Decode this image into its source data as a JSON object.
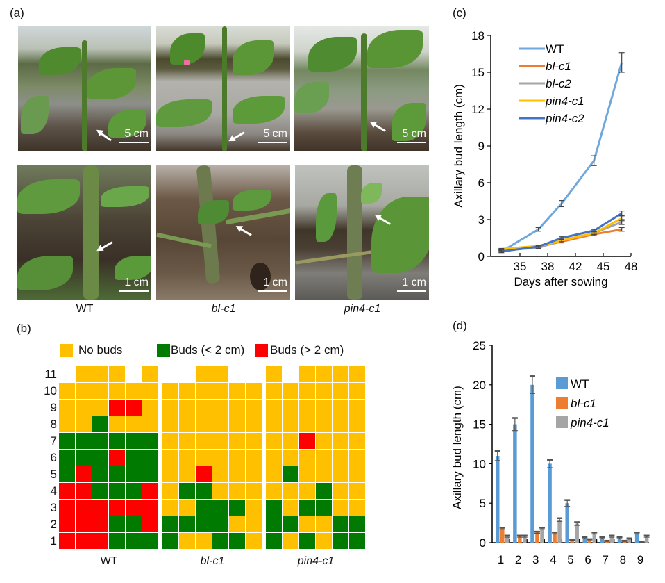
{
  "panels": {
    "a": {
      "label": "(a)",
      "photos_top": [
        {
          "genotype": "WT",
          "scale": "5 cm"
        },
        {
          "genotype": "bl-c1",
          "scale": "5 cm"
        },
        {
          "genotype": "pin4-c1",
          "scale": "5 cm"
        }
      ],
      "photos_bottom": [
        {
          "genotype": "WT",
          "scale": "1 cm"
        },
        {
          "genotype": "bl-c1",
          "scale": "1 cm"
        },
        {
          "genotype": "pin4-c1",
          "scale": "1 cm"
        }
      ],
      "captions": [
        "WT",
        "bl-c1",
        "pin4-c1"
      ]
    },
    "b": {
      "label": "(b)",
      "legend": [
        {
          "key": "Y",
          "label": "No buds",
          "color": "#FFC000"
        },
        {
          "key": "G",
          "label": "Buds (< 2 cm)",
          "color": "#007A00"
        },
        {
          "key": "R",
          "label": "Buds (> 2 cm)",
          "color": "#FF0000"
        }
      ],
      "row_labels": [
        "11",
        "10",
        "9",
        "8",
        "7",
        "6",
        "5",
        "4",
        "3",
        "2",
        "1"
      ],
      "groups": [
        {
          "name": "WT",
          "rows": [
            [
              "-",
              "Y",
              "Y",
              "Y",
              "-",
              "Y"
            ],
            [
              "Y",
              "Y",
              "Y",
              "Y",
              "Y",
              "Y"
            ],
            [
              "Y",
              "Y",
              "Y",
              "R",
              "R",
              "Y"
            ],
            [
              "Y",
              "Y",
              "G",
              "Y",
              "Y",
              "Y"
            ],
            [
              "G",
              "G",
              "G",
              "G",
              "G",
              "G"
            ],
            [
              "G",
              "G",
              "G",
              "R",
              "G",
              "G"
            ],
            [
              "G",
              "R",
              "G",
              "G",
              "G",
              "G"
            ],
            [
              "R",
              "R",
              "G",
              "G",
              "G",
              "R"
            ],
            [
              "R",
              "R",
              "R",
              "R",
              "R",
              "R"
            ],
            [
              "R",
              "R",
              "R",
              "G",
              "G",
              "R"
            ],
            [
              "R",
              "R",
              "R",
              "G",
              "G",
              "G"
            ]
          ]
        },
        {
          "name": "bl-c1",
          "rows": [
            [
              "-",
              "-",
              "Y",
              "Y",
              "-",
              "-"
            ],
            [
              "Y",
              "Y",
              "Y",
              "Y",
              "Y",
              "Y"
            ],
            [
              "Y",
              "Y",
              "Y",
              "Y",
              "Y",
              "Y"
            ],
            [
              "Y",
              "Y",
              "Y",
              "Y",
              "Y",
              "Y"
            ],
            [
              "Y",
              "Y",
              "Y",
              "Y",
              "Y",
              "Y"
            ],
            [
              "Y",
              "Y",
              "Y",
              "Y",
              "Y",
              "Y"
            ],
            [
              "Y",
              "Y",
              "R",
              "Y",
              "Y",
              "Y"
            ],
            [
              "Y",
              "G",
              "G",
              "Y",
              "Y",
              "Y"
            ],
            [
              "Y",
              "Y",
              "G",
              "G",
              "G",
              "Y"
            ],
            [
              "G",
              "G",
              "G",
              "G",
              "Y",
              "Y"
            ],
            [
              "G",
              "Y",
              "Y",
              "G",
              "G",
              "Y"
            ]
          ]
        },
        {
          "name": "pin4-c1",
          "rows": [
            [
              "Y",
              "-",
              "Y",
              "Y",
              "Y",
              "Y"
            ],
            [
              "Y",
              "Y",
              "Y",
              "Y",
              "Y",
              "Y"
            ],
            [
              "Y",
              "Y",
              "Y",
              "Y",
              "Y",
              "Y"
            ],
            [
              "Y",
              "Y",
              "Y",
              "Y",
              "Y",
              "Y"
            ],
            [
              "Y",
              "Y",
              "R",
              "Y",
              "Y",
              "Y"
            ],
            [
              "Y",
              "Y",
              "Y",
              "Y",
              "Y",
              "Y"
            ],
            [
              "Y",
              "G",
              "Y",
              "Y",
              "Y",
              "Y"
            ],
            [
              "Y",
              "Y",
              "Y",
              "G",
              "Y",
              "Y"
            ],
            [
              "G",
              "Y",
              "G",
              "G",
              "Y",
              "Y"
            ],
            [
              "G",
              "G",
              "Y",
              "Y",
              "G",
              "G"
            ],
            [
              "G",
              "Y",
              "G",
              "Y",
              "G",
              "G"
            ]
          ]
        }
      ]
    },
    "c": {
      "label": "(c)"
    },
    "d": {
      "label": "(d)"
    }
  },
  "chart_data": [
    {
      "id": "c",
      "type": "line",
      "title": "",
      "xlabel": "Days after sowing",
      "ylabel": "Axillary bud length (cm)",
      "x_ticks": [
        "35",
        "38",
        "42",
        "45",
        "48"
      ],
      "x": [
        33,
        37,
        40,
        44,
        47
      ],
      "ylim": [
        0,
        18
      ],
      "y_ticks": [
        0,
        3,
        6,
        9,
        12,
        15,
        18
      ],
      "legend_position": "top-left",
      "series": [
        {
          "name": "WT",
          "color": "#6FA8DC",
          "italic": false,
          "values": [
            0.4,
            2.2,
            4.3,
            7.8,
            15.8
          ],
          "err": [
            0.1,
            0.15,
            0.25,
            0.4,
            0.8
          ]
        },
        {
          "name": "bl-c1",
          "color": "#ED7D31",
          "italic": true,
          "values": [
            0.5,
            0.8,
            1.2,
            1.8,
            2.2
          ],
          "err": [
            0.05,
            0.05,
            0.1,
            0.1,
            0.15
          ]
        },
        {
          "name": "bl-c2",
          "color": "#A5A5A5",
          "italic": true,
          "values": [
            0.5,
            0.7,
            1.3,
            1.9,
            2.8
          ],
          "err": [
            0.05,
            0.05,
            0.1,
            0.1,
            0.2
          ]
        },
        {
          "name": "pin4-c1",
          "color": "#FFC000",
          "italic": true,
          "values": [
            0.6,
            0.85,
            1.3,
            1.9,
            3.1
          ],
          "err": [
            0.05,
            0.05,
            0.1,
            0.1,
            0.2
          ]
        },
        {
          "name": "pin4-c2",
          "color": "#4472C4",
          "italic": true,
          "values": [
            0.4,
            0.8,
            1.5,
            2.1,
            3.5
          ],
          "err": [
            0.05,
            0.05,
            0.1,
            0.1,
            0.2
          ]
        }
      ]
    },
    {
      "id": "d",
      "type": "bar",
      "title": "",
      "xlabel": "",
      "ylabel": "Axillary bud length (cm)",
      "categories": [
        "1",
        "2",
        "3",
        "4",
        "5",
        "6",
        "7",
        "8",
        "9"
      ],
      "ylim": [
        0,
        25
      ],
      "y_ticks": [
        0,
        5,
        10,
        15,
        20,
        25
      ],
      "legend_position": "top-right",
      "series": [
        {
          "name": "WT",
          "color": "#5B9BD5",
          "italic": false,
          "values": [
            11,
            15,
            20,
            10,
            5,
            0.6,
            0.6,
            0.6,
            1.2
          ],
          "err": [
            0.6,
            0.8,
            1.1,
            0.5,
            0.4,
            0.1,
            0.1,
            0.1,
            0.1
          ]
        },
        {
          "name": "bl-c1",
          "color": "#ED7D31",
          "italic": true,
          "values": [
            1.8,
            0.8,
            1.3,
            1.2,
            0.3,
            0.4,
            0.2,
            0.2,
            0.1
          ],
          "err": [
            0.1,
            0.1,
            0.1,
            0.1,
            0.05,
            0.05,
            0.05,
            0.05,
            0.05
          ]
        },
        {
          "name": "pin4-c1",
          "color": "#A5A5A5",
          "italic": true,
          "values": [
            0.8,
            0.8,
            1.8,
            2.9,
            2.4,
            1.2,
            0.8,
            0.5,
            0.8
          ],
          "err": [
            0.1,
            0.1,
            0.1,
            0.2,
            0.2,
            0.1,
            0.1,
            0.05,
            0.1
          ]
        }
      ]
    }
  ]
}
